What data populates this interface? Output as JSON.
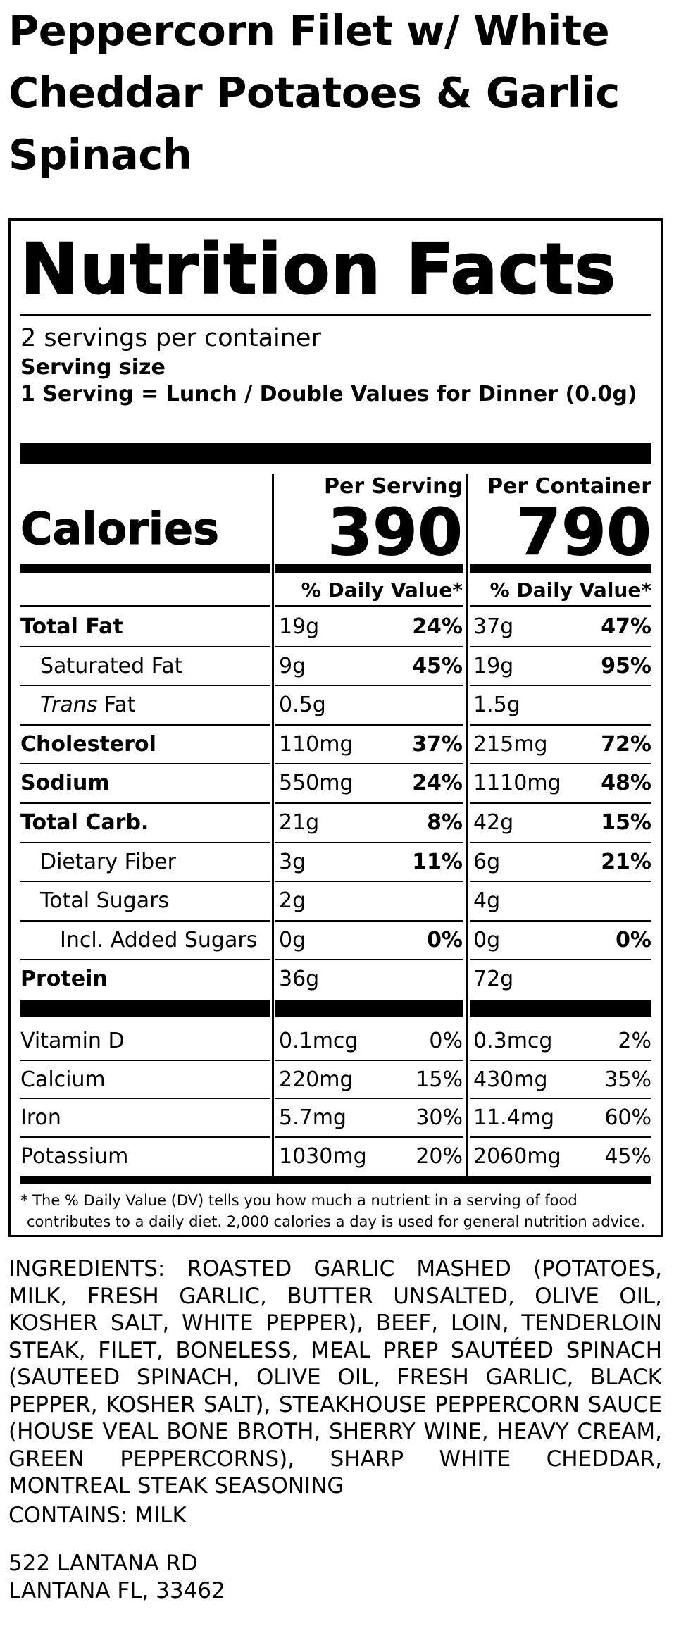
{
  "product_title": "Peppercorn Filet w/ White Cheddar Potatoes & Garlic Spinach",
  "label": {
    "heading": "Nutrition Facts",
    "servings_per_container": "2 servings per container",
    "serving_size_label": "Serving size",
    "serving_size_value": "1 Serving = Lunch / Double Values for Dinner (0.0g)",
    "per_serving_label": "Per Serving",
    "per_container_label": "Per Container",
    "calories_label": "Calories",
    "calories_serving": "390",
    "calories_container": "790",
    "dv_header": "% Daily Value*",
    "nutrients": [
      {
        "name": "Total Fat",
        "bold": true,
        "indent": 0,
        "italic_prefix": "",
        "serving_amt": "19g",
        "serving_pct": "24%",
        "container_amt": "37g",
        "container_pct": "47%"
      },
      {
        "name": "Saturated Fat",
        "bold": false,
        "indent": 1,
        "italic_prefix": "",
        "serving_amt": "9g",
        "serving_pct": "45%",
        "container_amt": "19g",
        "container_pct": "95%"
      },
      {
        "name": " Fat",
        "bold": false,
        "indent": 1,
        "italic_prefix": "Trans",
        "serving_amt": "0.5g",
        "serving_pct": "",
        "container_amt": "1.5g",
        "container_pct": ""
      },
      {
        "name": "Cholesterol",
        "bold": true,
        "indent": 0,
        "italic_prefix": "",
        "serving_amt": "110mg",
        "serving_pct": "37%",
        "container_amt": "215mg",
        "container_pct": "72%"
      },
      {
        "name": "Sodium",
        "bold": true,
        "indent": 0,
        "italic_prefix": "",
        "serving_amt": "550mg",
        "serving_pct": "24%",
        "container_amt": "1110mg",
        "container_pct": "48%"
      },
      {
        "name": "Total Carb.",
        "bold": true,
        "indent": 0,
        "italic_prefix": "",
        "serving_amt": "21g",
        "serving_pct": "8%",
        "container_amt": "42g",
        "container_pct": "15%"
      },
      {
        "name": "Dietary Fiber",
        "bold": false,
        "indent": 1,
        "italic_prefix": "",
        "serving_amt": "3g",
        "serving_pct": "11%",
        "container_amt": "6g",
        "container_pct": "21%"
      },
      {
        "name": "Total Sugars",
        "bold": false,
        "indent": 1,
        "italic_prefix": "",
        "serving_amt": "2g",
        "serving_pct": "",
        "container_amt": "4g",
        "container_pct": ""
      },
      {
        "name": "Incl. Added Sugars",
        "bold": false,
        "indent": 2,
        "italic_prefix": "",
        "serving_amt": "0g",
        "serving_pct": "0%",
        "container_amt": "0g",
        "container_pct": "0%"
      },
      {
        "name": "Protein",
        "bold": true,
        "indent": 0,
        "italic_prefix": "",
        "serving_amt": "36g",
        "serving_pct": "",
        "container_amt": "72g",
        "container_pct": ""
      }
    ],
    "vitamins": [
      {
        "name": "Vitamin D",
        "serving_amt": "0.1mcg",
        "serving_pct": "0%",
        "container_amt": "0.3mcg",
        "container_pct": "2%"
      },
      {
        "name": "Calcium",
        "serving_amt": "220mg",
        "serving_pct": "15%",
        "container_amt": "430mg",
        "container_pct": "35%"
      },
      {
        "name": "Iron",
        "serving_amt": "5.7mg",
        "serving_pct": "30%",
        "container_amt": "11.4mg",
        "container_pct": "60%"
      },
      {
        "name": "Potassium",
        "serving_amt": "1030mg",
        "serving_pct": "20%",
        "container_amt": "2060mg",
        "container_pct": "45%"
      }
    ],
    "footnote_line1": "* The % Daily Value (DV) tells you how much a nutrient in a serving of food",
    "footnote_line2": "contributes to a daily diet. 2,000 calories a day is used for general nutrition advice."
  },
  "ingredients": "INGREDIENTS: ROASTED GARLIC MASHED (POTATOES, MILK, FRESH GARLIC, BUTTER UNSALTED, OLIVE OIL, KOSHER SALT, WHITE PEPPER), BEEF, LOIN, TENDERLOIN STEAK, FILET, BONELESS, MEAL PREP SAUTÉED SPINACH (SAUTEED SPINACH, OLIVE OIL, FRESH GARLIC, BLACK PEPPER, KOSHER SALT), STEAKHOUSE PEPPERCORN SAUCE (HOUSE VEAL BONE BROTH, SHERRY WINE, HEAVY CREAM, GREEN PEPPERCORNS), SHARP WHITE CHEDDAR, MONTREAL STEAK SEASONING",
  "contains": "CONTAINS: MILK",
  "address": {
    "line1": "522 LANTANA RD",
    "line2": "LANTANA FL, 33462"
  }
}
